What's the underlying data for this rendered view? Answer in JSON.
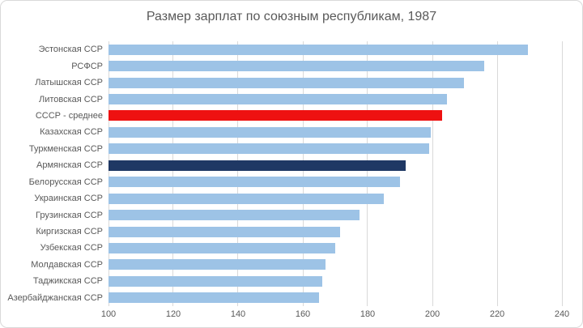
{
  "chart_data": {
    "type": "bar",
    "orientation": "horizontal",
    "title": "Размер зарплат по союзным республикам, 1987",
    "categories": [
      "Эстонская ССР",
      "РСФСР",
      "Латышская ССР",
      "Литовская ССР",
      "СССР - среднее",
      "Казахская ССР",
      "Туркменская ССР",
      "Армянская ССР",
      "Белорусская ССР",
      "Украинская ССР",
      "Грузинская ССР",
      "Киргизская ССР",
      "Узбекская ССР",
      "Молдавская ССР",
      "Таджикская ССР",
      "Азербайджанская ССР"
    ],
    "values": [
      229.4,
      216.1,
      209.7,
      204.6,
      202.9,
      199.6,
      199.0,
      191.7,
      190.1,
      185.0,
      177.4,
      171.4,
      169.9,
      166.9,
      166.1,
      164.9
    ],
    "xlim": [
      100,
      240
    ],
    "x_ticks": [
      100,
      120,
      140,
      160,
      180,
      200,
      220,
      240
    ],
    "grid": "vertical-major",
    "legend": "none",
    "colors": {
      "bar_default": "#9DC3E6",
      "grid": "#D9D9D9",
      "text": "#595959",
      "border": "#D9D9D9",
      "background": "#FFFFFF"
    },
    "bar_colors": {
      "СССР - среднее": "#EE1111",
      "Армянская ССР": "#1F3864"
    }
  }
}
